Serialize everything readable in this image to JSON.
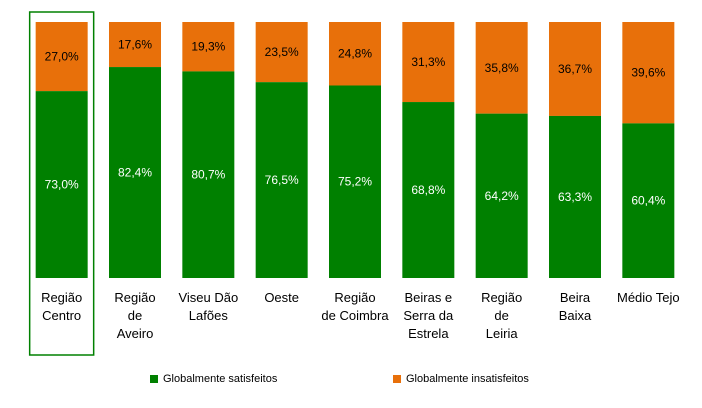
{
  "chart_data": {
    "type": "bar",
    "stacked": true,
    "percent": true,
    "categories": [
      [
        "Região",
        "Centro"
      ],
      [
        "Região",
        "de",
        "Aveiro"
      ],
      [
        "Viseu Dão",
        "Lafões"
      ],
      [
        "Oeste"
      ],
      [
        "Região",
        "de Coimbra"
      ],
      [
        "Beiras e",
        "Serra da",
        "Estrela"
      ],
      [
        "Região",
        "de",
        "Leiria"
      ],
      [
        "Beira",
        "Baixa"
      ],
      [
        "Médio Tejo"
      ]
    ],
    "series": [
      {
        "name": "Globalmente satisfeitos",
        "color": "#008000",
        "values": [
          73.0,
          82.4,
          80.7,
          76.5,
          75.2,
          68.8,
          64.2,
          63.3,
          60.4
        ],
        "labels": [
          "73,0%",
          "82,4%",
          "80,7%",
          "76,5%",
          "75,2%",
          "68,8%",
          "64,2%",
          "63,3%",
          "60,4%"
        ]
      },
      {
        "name": "Globalmente insatisfeitos",
        "color": "#E8700A",
        "values": [
          27.0,
          17.6,
          19.3,
          23.5,
          24.8,
          31.3,
          35.8,
          36.7,
          39.6
        ],
        "labels": [
          "27,0%",
          "17,6%",
          "19,3%",
          "23,5%",
          "24,8%",
          "31,3%",
          "35,8%",
          "36,7%",
          "39,6%"
        ]
      }
    ],
    "highlight_color": "#008000",
    "highlighted_category_index": 0,
    "ylim": [
      0,
      100
    ],
    "legend_position": "bottom",
    "grid": false
  }
}
